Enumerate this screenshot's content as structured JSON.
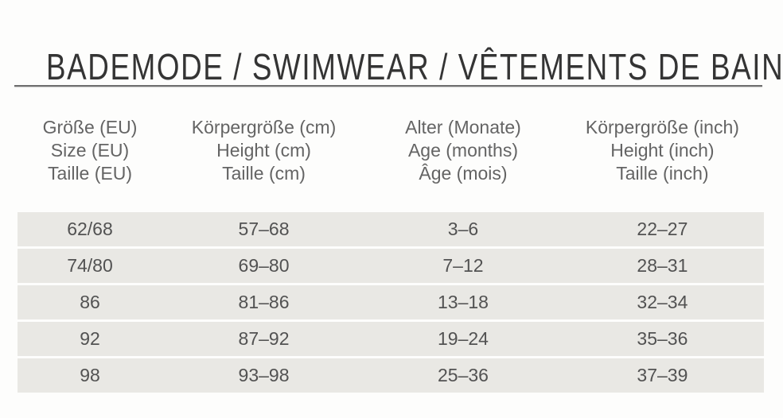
{
  "title": "BADEMODE / SWIMWEAR / VÊTEMENTS DE BAIN",
  "colors": {
    "page_background": "#fdfdfc",
    "row_band": "#e9e8e4",
    "divider": "#6d6d6d",
    "title_text": "#343434",
    "header_text": "#646464",
    "cell_text": "#525252"
  },
  "table": {
    "headers": [
      {
        "lines": [
          "Größe (EU)",
          "Size (EU)",
          "Taille (EU)"
        ]
      },
      {
        "lines": [
          "Körpergröße (cm)",
          "Height (cm)",
          "Taille (cm)"
        ]
      },
      {
        "lines": [
          "Alter (Monate)",
          "Age (months)",
          "Âge (mois)"
        ]
      },
      {
        "lines": [
          "Körpergröße (inch)",
          "Height (inch)",
          "Taille (inch)"
        ]
      }
    ],
    "rows": [
      [
        "62/68",
        "57–68",
        "3–6",
        "22–27"
      ],
      [
        "74/80",
        "69–80",
        "7–12",
        "28–31"
      ],
      [
        "86",
        "81–86",
        "13–18",
        "32–34"
      ],
      [
        "92",
        "87–92",
        "19–24",
        "35–36"
      ],
      [
        "98",
        "93–98",
        "25–36",
        "37–39"
      ]
    ]
  }
}
